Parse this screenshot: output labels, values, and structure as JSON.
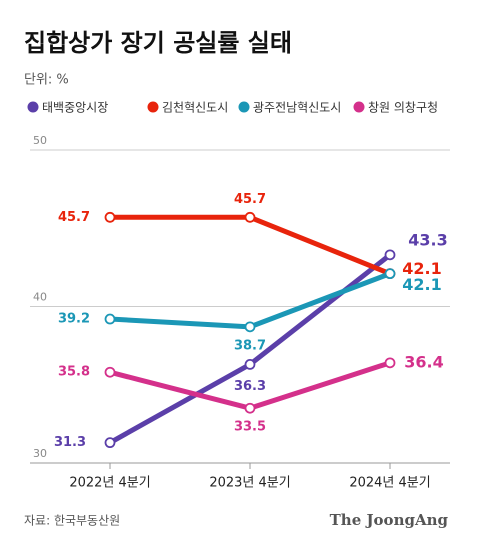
{
  "chart_data": {
    "type": "line",
    "title": "집합상가 장기 공실률 실태",
    "subtitle": "단위: %",
    "categories": [
      "2022년 4분기",
      "2023년 4분기",
      "2024년 4분기"
    ],
    "series": [
      {
        "name": "태백중앙시장",
        "color": "#5b3fa9",
        "values": [
          31.3,
          36.3,
          43.3
        ]
      },
      {
        "name": "김천혁신도시",
        "color": "#e8240c",
        "values": [
          45.7,
          45.7,
          42.1
        ]
      },
      {
        "name": "광주전남혁신도시",
        "color": "#1b97b6",
        "values": [
          39.2,
          38.7,
          42.1
        ]
      },
      {
        "name": "창원 의창구청",
        "color": "#d4308b",
        "values": [
          35.8,
          33.5,
          36.4
        ]
      }
    ],
    "ylim": [
      30,
      50
    ],
    "yticks": [
      30,
      40,
      50
    ],
    "grid": true,
    "source": "자료: 한국부동산원",
    "brand": "The JoongAng"
  }
}
